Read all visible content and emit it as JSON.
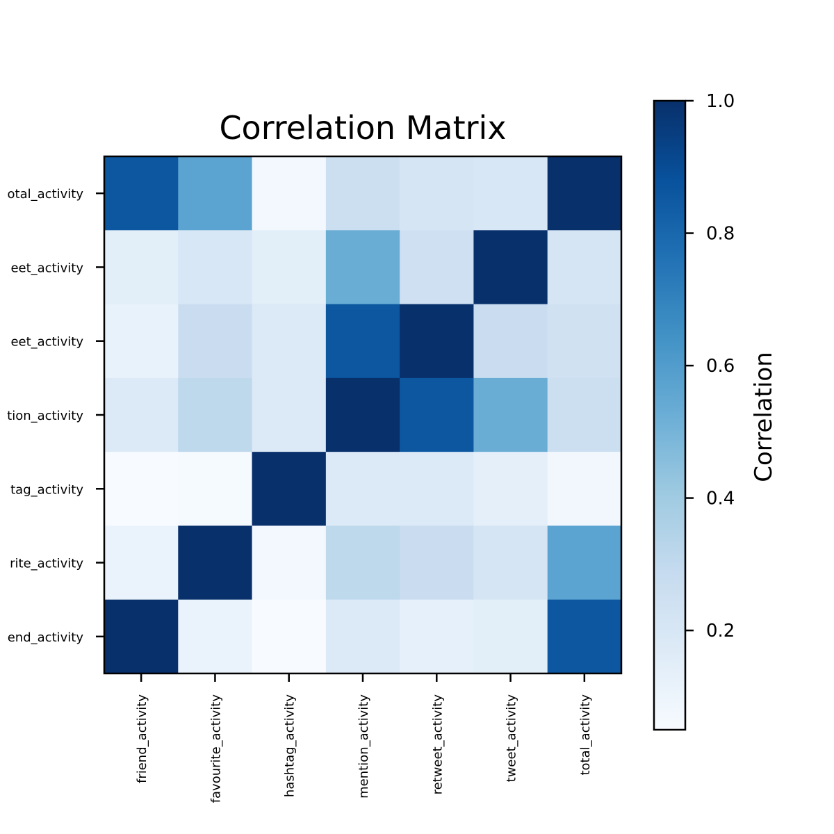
{
  "chart_data": {
    "type": "heatmap",
    "title": "Correlation Matrix",
    "x_labels": [
      "friend_activity",
      "favourite_activity",
      "hashtag_activity",
      "mention_activity",
      "retweet_activity",
      "tweet_activity",
      "total_activity"
    ],
    "y_labels_top_to_bottom": [
      "total_activity",
      "tweet_activity",
      "retweet_activity",
      "mention_activity",
      "hashtag_activity",
      "favourite_activity",
      "friend_activity"
    ],
    "y_tick_texts_visible": [
      "otal_activity",
      "eet_activity",
      "eet_activity",
      "tion_activity",
      "tag_activity",
      "rite_activity",
      "end_activity"
    ],
    "values_top_to_bottom": [
      [
        0.86,
        0.57,
        0.07,
        0.26,
        0.21,
        0.2,
        1.0
      ],
      [
        0.15,
        0.2,
        0.15,
        0.53,
        0.25,
        1.0,
        0.21
      ],
      [
        0.12,
        0.27,
        0.18,
        0.86,
        1.0,
        0.27,
        0.24
      ],
      [
        0.18,
        0.31,
        0.18,
        1.0,
        0.86,
        0.53,
        0.26
      ],
      [
        0.05,
        0.06,
        1.0,
        0.18,
        0.18,
        0.14,
        0.08
      ],
      [
        0.11,
        1.0,
        0.07,
        0.31,
        0.27,
        0.21,
        0.57
      ],
      [
        1.0,
        0.11,
        0.05,
        0.18,
        0.13,
        0.15,
        0.86
      ]
    ],
    "colormap": "Blues",
    "color_scale": {
      "min": 0.05,
      "max": 1.0,
      "stops": [
        "#f7fbff",
        "#deebf7",
        "#c6dbef",
        "#9ecae1",
        "#6baed6",
        "#4292c6",
        "#2171b5",
        "#08519c",
        "#08306b"
      ]
    },
    "colorbar": {
      "label": "Correlation",
      "ticks": [
        "0.2",
        "0.4",
        "0.6",
        "0.8",
        "1.0"
      ],
      "tick_values": [
        0.2,
        0.4,
        0.6,
        0.8,
        1.0
      ]
    }
  }
}
